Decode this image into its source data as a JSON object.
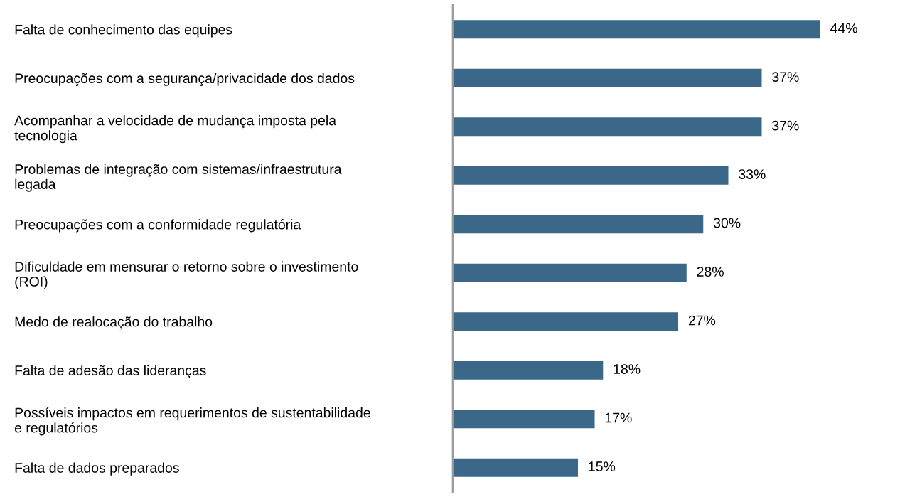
{
  "chart_data": {
    "type": "bar",
    "orientation": "horizontal",
    "color": "#3b6788",
    "categories": [
      "Falta de conhecimento das equipes",
      "Preocupações com a segurança/privacidade dos dados",
      "Acompanhar a velocidade de mudança imposta pela\ntecnologia",
      "Problemas de integração com sistemas/infraestrutura\nlegada",
      "Preocupações com a conformidade regulatória",
      "Dificuldade em mensurar o retorno sobre o investimento\n(ROI)",
      "Medo de realocação do trabalho",
      "Falta de adesão das lideranças",
      "Possíveis impactos em requerimentos de sustentabilidade\ne regulatórios",
      "Falta de dados preparados"
    ],
    "values": [
      44,
      37,
      37,
      33,
      30,
      28,
      27,
      18,
      17,
      15
    ],
    "value_labels": [
      "44%",
      "37%",
      "37%",
      "33%",
      "30%",
      "28%",
      "27%",
      "18%",
      "17%",
      "15%"
    ]
  }
}
